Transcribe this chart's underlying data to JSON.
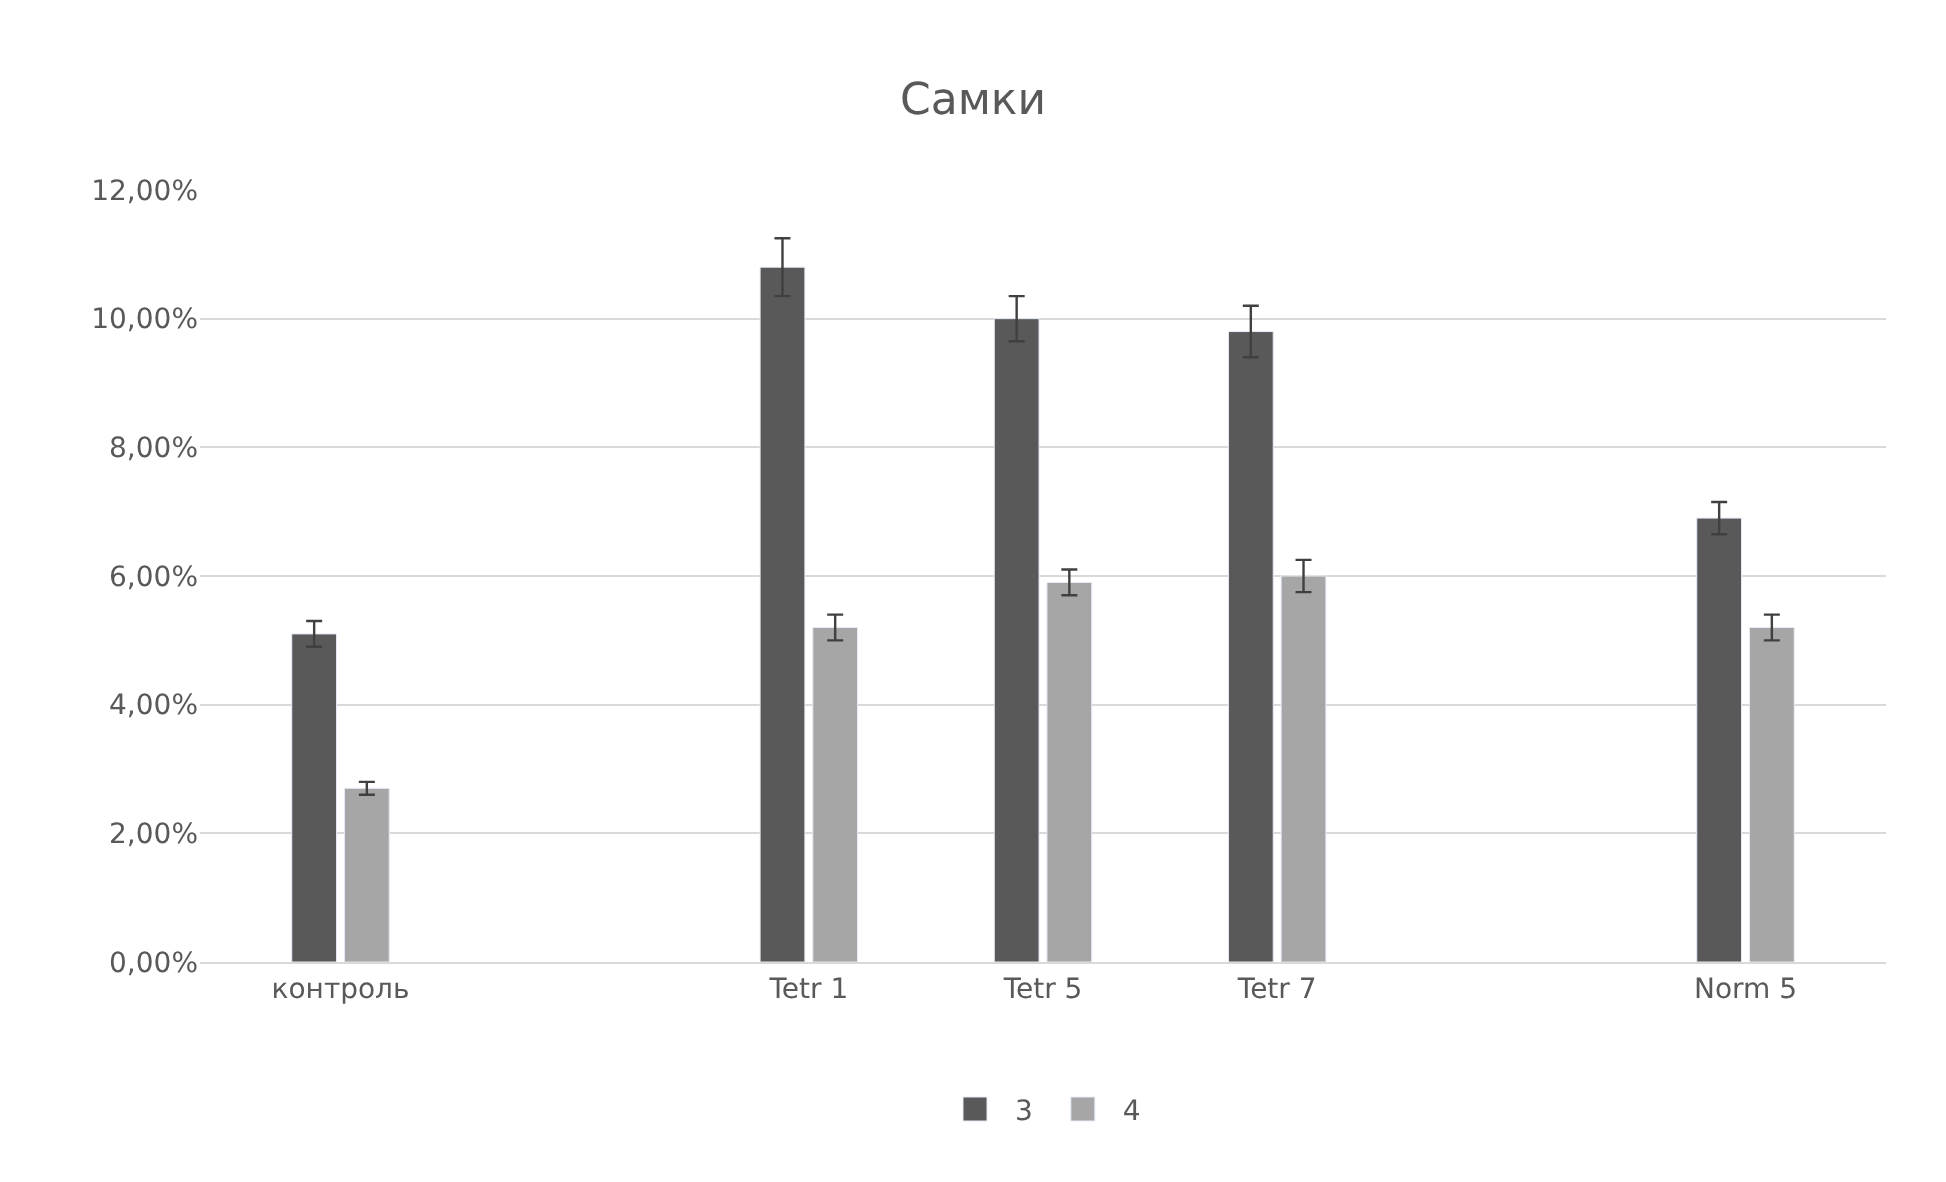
{
  "chart_data": {
    "type": "bar",
    "title": "Самки",
    "categories": [
      "контроль",
      null,
      "Tetr 1",
      "Tetr 5",
      "Tetr 7",
      null,
      "Norm 5"
    ],
    "series": [
      {
        "name": "3",
        "color": "#595959",
        "values": [
          5.1,
          null,
          10.8,
          10.0,
          9.8,
          null,
          6.9
        ],
        "errors": [
          0.2,
          null,
          0.45,
          0.35,
          0.4,
          null,
          0.25
        ]
      },
      {
        "name": "4",
        "color": "#a6a6a6",
        "values": [
          2.7,
          null,
          5.2,
          5.9,
          6.0,
          null,
          5.2
        ],
        "errors": [
          0.1,
          null,
          0.2,
          0.2,
          0.25,
          null,
          0.2
        ]
      }
    ],
    "ylim": [
      0,
      12
    ],
    "yticks": [
      {
        "value": 0,
        "label": "0,00%"
      },
      {
        "value": 2,
        "label": "2,00%"
      },
      {
        "value": 4,
        "label": "4,00%"
      },
      {
        "value": 6,
        "label": "6,00%"
      },
      {
        "value": 8,
        "label": "8,00%"
      },
      {
        "value": 10,
        "label": "10,00%"
      },
      {
        "value": 12,
        "label": "12,00%"
      }
    ],
    "grid": "y",
    "legend": "bottom"
  }
}
